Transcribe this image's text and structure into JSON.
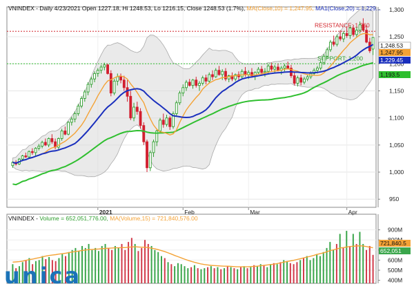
{
  "header": {
    "symbol": "VNINDEX",
    "period": "Daily",
    "date": "4/23/2021",
    "open_label": "Open",
    "open": "1227.18",
    "high_label": "Hi",
    "high": "1248.53",
    "low_label": "Lo",
    "low": "1216.15",
    "close_label": "Close",
    "close": "1248.53 (1.7%)",
    "ma10_text": "MA(Close,10) = 1,247.95,",
    "ma20_text": "MA1(Close,20) = 1,229..."
  },
  "volume_header": {
    "symbol": "VNINDEX",
    "volume_text": "Volume = 652,051,776.00,",
    "ma_text": "MA(Volume,15) = 721,840,576.00"
  },
  "logo": {
    "text": "unica",
    "color": "#1b73b8"
  },
  "colors": {
    "up": "#2e9e2e",
    "down": "#d21f2f",
    "ma10": "#f4a235",
    "ma20": "#1a2fbd",
    "ma50": "#2fbf2f",
    "band": "#d9d9d9",
    "resistance": "#d2232a",
    "support": "#2fbf2f",
    "vol_up": "#3aa64b",
    "vol_down": "#d23a4a",
    "vol_ma": "#f4a235"
  },
  "chart_data": [
    {
      "type": "candlestick",
      "ylim": [
        935,
        1305
      ],
      "y_ticks": [
        950,
        1000,
        1050,
        1100,
        1150,
        1200,
        1250,
        1300
      ],
      "y_tick_labels": [
        "950",
        "1,000",
        "1,050",
        "1,100",
        "1,150",
        "1,200",
        "1,250",
        "1,300"
      ],
      "x_labels": [
        {
          "label": "2021",
          "bar": 26
        },
        {
          "label": "Feb",
          "bar": 52
        },
        {
          "label": "Mar",
          "bar": 72
        },
        {
          "label": "Apr",
          "bar": 102
        }
      ],
      "resistance": {
        "label": "RESISTANCE: 1,260",
        "value": 1260
      },
      "support": {
        "label": "SUPPORT: 1,200",
        "value": 1200
      },
      "price_tags": [
        {
          "value": "1,248.53",
          "y": 1248.53,
          "series": "close"
        },
        {
          "value": "1,247.95",
          "y": 1247.95,
          "series": "ma10"
        },
        {
          "value": "1,229.45",
          "y": 1229.45,
          "series": "ma20"
        },
        {
          "value": "1,193.5",
          "y": 1193.5,
          "series": "ma50"
        }
      ],
      "candles": [
        [
          1012,
          1020,
          1008,
          1018
        ],
        [
          1018,
          1022,
          1012,
          1015
        ],
        [
          1015,
          1026,
          1013,
          1024
        ],
        [
          1024,
          1032,
          1020,
          1030
        ],
        [
          1030,
          1036,
          1026,
          1028
        ],
        [
          1028,
          1040,
          1025,
          1038
        ],
        [
          1038,
          1044,
          1032,
          1036
        ],
        [
          1036,
          1046,
          1030,
          1044
        ],
        [
          1044,
          1052,
          1040,
          1048
        ],
        [
          1048,
          1058,
          1044,
          1055
        ],
        [
          1055,
          1062,
          1048,
          1050
        ],
        [
          1050,
          1064,
          1046,
          1062
        ],
        [
          1062,
          1070,
          1052,
          1056
        ],
        [
          1056,
          1062,
          1042,
          1046
        ],
        [
          1046,
          1064,
          1042,
          1062
        ],
        [
          1062,
          1080,
          1058,
          1076
        ],
        [
          1076,
          1084,
          1068,
          1070
        ],
        [
          1070,
          1094,
          1068,
          1092
        ],
        [
          1092,
          1102,
          1086,
          1098
        ],
        [
          1098,
          1112,
          1092,
          1108
        ],
        [
          1108,
          1126,
          1104,
          1122
        ],
        [
          1122,
          1140,
          1118,
          1136
        ],
        [
          1136,
          1152,
          1130,
          1148
        ],
        [
          1148,
          1166,
          1142,
          1162
        ],
        [
          1162,
          1176,
          1156,
          1172
        ],
        [
          1172,
          1186,
          1166,
          1182
        ],
        [
          1182,
          1192,
          1176,
          1188
        ],
        [
          1188,
          1198,
          1182,
          1194
        ],
        [
          1194,
          1202,
          1188,
          1198
        ],
        [
          1198,
          1200,
          1180,
          1182
        ],
        [
          1182,
          1188,
          1140,
          1146
        ],
        [
          1146,
          1172,
          1142,
          1168
        ],
        [
          1168,
          1182,
          1160,
          1176
        ],
        [
          1176,
          1182,
          1164,
          1170
        ],
        [
          1170,
          1178,
          1150,
          1156
        ],
        [
          1156,
          1170,
          1130,
          1140
        ],
        [
          1140,
          1150,
          1096,
          1100
        ],
        [
          1100,
          1128,
          1094,
          1120
        ],
        [
          1120,
          1130,
          1106,
          1112
        ],
        [
          1112,
          1118,
          1080,
          1086
        ],
        [
          1086,
          1092,
          1050,
          1056
        ],
        [
          1056,
          1060,
          1000,
          1008
        ],
        [
          1008,
          1040,
          1002,
          1036
        ],
        [
          1036,
          1060,
          1028,
          1056
        ],
        [
          1056,
          1080,
          1048,
          1076
        ],
        [
          1076,
          1100,
          1072,
          1096
        ],
        [
          1096,
          1108,
          1082,
          1088
        ],
        [
          1088,
          1106,
          1084,
          1100
        ],
        [
          1100,
          1104,
          1078,
          1084
        ],
        [
          1084,
          1112,
          1080,
          1108
        ],
        [
          1108,
          1132,
          1104,
          1128
        ],
        [
          1128,
          1150,
          1124,
          1146
        ],
        [
          1146,
          1162,
          1140,
          1156
        ],
        [
          1156,
          1170,
          1150,
          1166
        ],
        [
          1166,
          1172,
          1158,
          1160
        ],
        [
          1160,
          1172,
          1154,
          1170
        ],
        [
          1170,
          1176,
          1156,
          1160
        ],
        [
          1160,
          1168,
          1150,
          1164
        ],
        [
          1164,
          1178,
          1160,
          1174
        ],
        [
          1174,
          1180,
          1162,
          1168
        ],
        [
          1168,
          1184,
          1164,
          1180
        ],
        [
          1180,
          1188,
          1170,
          1176
        ],
        [
          1176,
          1192,
          1174,
          1188
        ],
        [
          1188,
          1196,
          1178,
          1180
        ],
        [
          1180,
          1190,
          1170,
          1186
        ],
        [
          1186,
          1192,
          1168,
          1172
        ],
        [
          1172,
          1180,
          1166,
          1178
        ],
        [
          1178,
          1184,
          1168,
          1172
        ],
        [
          1172,
          1182,
          1168,
          1180
        ],
        [
          1180,
          1186,
          1170,
          1176
        ],
        [
          1176,
          1190,
          1172,
          1186
        ],
        [
          1186,
          1194,
          1176,
          1180
        ],
        [
          1180,
          1188,
          1172,
          1184
        ],
        [
          1184,
          1192,
          1176,
          1178
        ],
        [
          1178,
          1186,
          1170,
          1184
        ],
        [
          1184,
          1194,
          1180,
          1190
        ],
        [
          1190,
          1196,
          1180,
          1184
        ],
        [
          1184,
          1192,
          1176,
          1186
        ],
        [
          1186,
          1200,
          1182,
          1196
        ],
        [
          1196,
          1202,
          1186,
          1190
        ],
        [
          1190,
          1198,
          1182,
          1194
        ],
        [
          1194,
          1200,
          1186,
          1188
        ],
        [
          1188,
          1196,
          1180,
          1192
        ],
        [
          1192,
          1200,
          1186,
          1196
        ],
        [
          1196,
          1204,
          1190,
          1192
        ],
        [
          1192,
          1198,
          1174,
          1178
        ],
        [
          1178,
          1184,
          1160,
          1164
        ],
        [
          1164,
          1178,
          1158,
          1174
        ],
        [
          1174,
          1180,
          1160,
          1166
        ],
        [
          1166,
          1176,
          1162,
          1172
        ],
        [
          1172,
          1180,
          1168,
          1176
        ],
        [
          1176,
          1186,
          1172,
          1182
        ],
        [
          1182,
          1192,
          1178,
          1188
        ],
        [
          1188,
          1196,
          1182,
          1192
        ],
        [
          1192,
          1206,
          1188,
          1202
        ],
        [
          1202,
          1218,
          1198,
          1214
        ],
        [
          1214,
          1230,
          1210,
          1226
        ],
        [
          1226,
          1244,
          1222,
          1240
        ],
        [
          1240,
          1252,
          1232,
          1236
        ],
        [
          1236,
          1254,
          1232,
          1250
        ],
        [
          1250,
          1262,
          1242,
          1246
        ],
        [
          1246,
          1260,
          1240,
          1256
        ],
        [
          1256,
          1268,
          1248,
          1252
        ],
        [
          1252,
          1270,
          1246,
          1266
        ],
        [
          1266,
          1272,
          1250,
          1254
        ],
        [
          1254,
          1268,
          1248,
          1262
        ],
        [
          1262,
          1278,
          1256,
          1272
        ],
        [
          1272,
          1284,
          1260,
          1262
        ],
        [
          1262,
          1270,
          1238,
          1240
        ],
        [
          1240,
          1248,
          1220,
          1224
        ],
        [
          1227.18,
          1248.53,
          1216.15,
          1248.53
        ]
      ]
    },
    {
      "type": "bar",
      "title": "Volume",
      "ylim": [
        370,
        1000
      ],
      "y_ticks": [
        400,
        500,
        600,
        700,
        800,
        900
      ],
      "y_tick_labels": [
        "400M",
        "500M",
        "600M",
        "700M",
        "800M",
        "900M"
      ],
      "tags": [
        {
          "value": "721,840.5",
          "y": 721.8,
          "series": "vol_ma"
        },
        {
          "value": "652,051",
          "y": 652.1,
          "series": "volume"
        }
      ],
      "values": [
        560,
        520,
        540,
        580,
        600,
        620,
        560,
        590,
        600,
        640,
        610,
        630,
        600,
        590,
        620,
        660,
        640,
        680,
        700,
        720,
        690,
        740,
        720,
        760,
        700,
        720,
        690,
        740,
        760,
        720,
        700,
        740,
        720,
        760,
        700,
        780,
        820,
        760,
        690,
        720,
        800,
        760,
        740,
        700,
        680,
        640,
        620,
        580,
        560,
        540,
        570,
        560,
        540,
        520,
        530,
        550,
        520,
        510,
        520,
        530,
        540,
        520,
        530,
        510,
        520,
        540,
        530,
        520,
        510,
        530,
        540,
        520,
        530,
        550,
        540,
        560,
        550,
        530,
        560,
        570,
        560,
        580,
        600,
        590,
        570,
        560,
        580,
        600,
        620,
        640,
        600,
        620,
        660,
        640,
        680,
        720,
        780,
        700,
        760,
        860,
        720,
        890,
        740,
        860,
        760,
        880,
        760,
        700,
        740,
        652
      ],
      "ma_values": [
        580,
        582,
        585,
        590,
        598,
        605,
        610,
        618,
        624,
        632,
        640,
        646,
        650,
        654,
        660,
        664,
        668,
        674,
        680,
        686,
        690,
        696,
        700,
        704,
        706,
        708,
        710,
        714,
        716,
        718,
        720,
        722,
        722,
        724,
        724,
        728,
        730,
        732,
        730,
        728,
        728,
        724,
        718,
        712,
        704,
        694,
        684,
        672,
        660,
        646,
        634,
        622,
        610,
        598,
        588,
        578,
        570,
        562,
        556,
        552,
        548,
        546,
        544,
        542,
        540,
        540,
        538,
        536,
        534,
        534,
        534,
        534,
        536,
        538,
        540,
        544,
        548,
        552,
        556,
        560,
        566,
        572,
        580,
        586,
        592,
        598,
        606,
        614,
        622,
        630,
        638,
        646,
        656,
        664,
        672,
        682,
        694,
        702,
        710,
        720,
        724,
        730,
        734,
        738,
        740,
        742,
        740,
        734,
        728,
        722
      ]
    }
  ]
}
